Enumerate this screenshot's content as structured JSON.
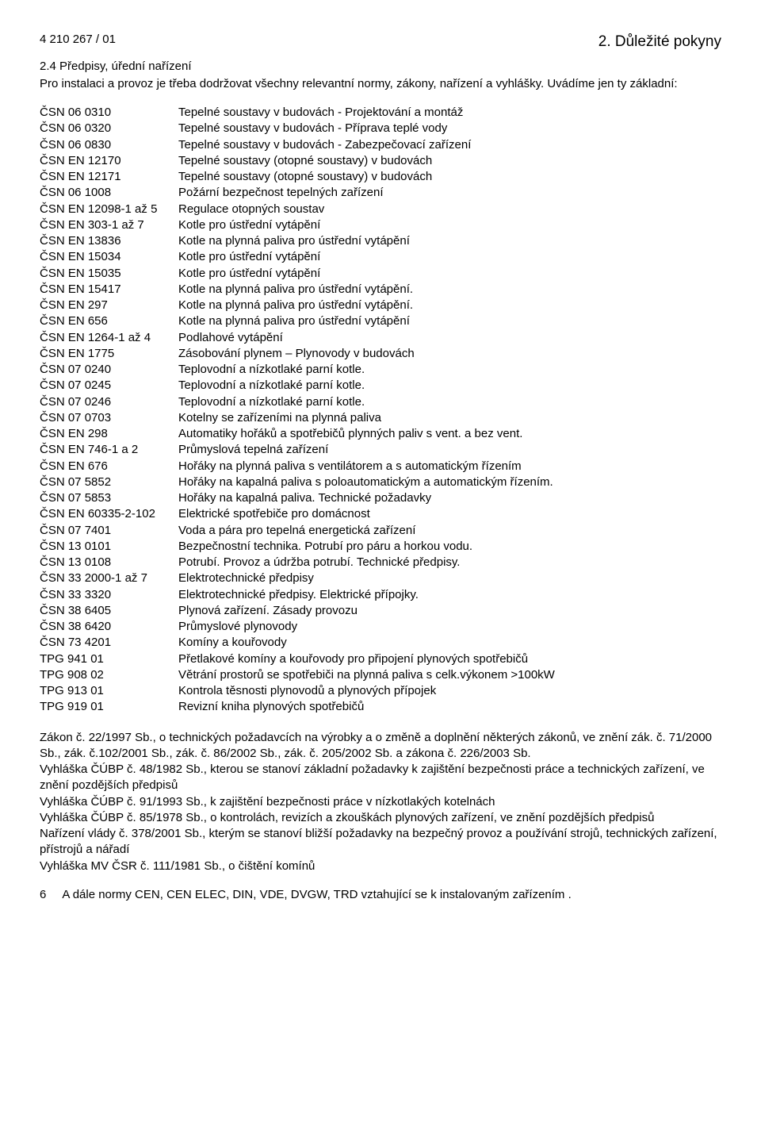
{
  "header": {
    "doc_id": "4 210 267 / 01",
    "section_title": "2. Důležité pokyny"
  },
  "subhead": "2.4  Předpisy, úřední nařízení",
  "intro_line1": "Pro instalaci a provoz je třeba dodržovat všechny relevantní normy, zákony, nařízení a vyhlášky.",
  "intro_line2": "Uvádíme jen ty základní:",
  "regs": [
    {
      "code": "ČSN 06 0310",
      "desc": "Tepelné soustavy v budovách - Projektování a montáž"
    },
    {
      "code": "ČSN 06 0320",
      "desc": "Tepelné soustavy v budovách - Příprava teplé vody"
    },
    {
      "code": "ČSN 06 0830",
      "desc": "Tepelné soustavy v budovách - Zabezpečovací zařízení"
    },
    {
      "code": "ČSN EN 12170",
      "desc": "Tepelné soustavy (otopné soustavy) v budovách"
    },
    {
      "code": "ČSN EN 12171",
      "desc": "Tepelné soustavy (otopné soustavy) v budovách"
    },
    {
      "code": "ČSN 06 1008",
      "desc": "Požární bezpečnost tepelných zařízení"
    },
    {
      "code": "ČSN EN 12098-1 až 5",
      "desc": "Regulace otopných soustav"
    },
    {
      "code": "ČSN EN 303-1 až 7",
      "desc": "Kotle pro ústřední vytápění"
    },
    {
      "code": "ČSN EN 13836",
      "desc": "Kotle na plynná paliva pro ústřední vytápění"
    },
    {
      "code": "ČSN EN 15034",
      "desc": "Kotle pro ústřední vytápění"
    },
    {
      "code": "ČSN EN 15035",
      "desc": "Kotle pro ústřední vytápění"
    },
    {
      "code": "ČSN EN 15417",
      "desc": "Kotle na plynná paliva pro ústřední vytápění."
    },
    {
      "code": "ČSN EN 297",
      "desc": "Kotle na plynná paliva pro ústřední vytápění."
    },
    {
      "code": "ČSN EN 656",
      "desc": "Kotle na plynná paliva pro ústřední vytápění"
    },
    {
      "code": "ČSN EN 1264-1 až 4",
      "desc": "Podlahové vytápění"
    },
    {
      "code": "ČSN EN 1775",
      "desc": "Zásobování plynem – Plynovody v budovách"
    },
    {
      "code": "ČSN 07 0240",
      "desc": "Teplovodní a nízkotlaké parní kotle."
    },
    {
      "code": "ČSN 07 0245",
      "desc": "Teplovodní a nízkotlaké parní kotle."
    },
    {
      "code": "ČSN 07 0246",
      "desc": "Teplovodní a nízkotlaké parní kotle."
    },
    {
      "code": "ČSN 07 0703",
      "desc": "Kotelny se zařízeními na plynná paliva"
    },
    {
      "code": "ČSN EN 298",
      "desc": "Automatiky hořáků a spotřebičů plynných paliv s vent. a bez vent."
    },
    {
      "code": "ČSN EN 746-1 a 2",
      "desc": "Průmyslová tepelná zařízení"
    },
    {
      "code": "ČSN EN 676",
      "desc": "Hořáky na plynná paliva s ventilátorem a s automatickým řízením"
    },
    {
      "code": "ČSN 07 5852",
      "desc": "Hořáky na kapalná paliva s poloautomatickým a automatickým řízením."
    },
    {
      "code": "ČSN 07 5853",
      "desc": "Hořáky na kapalná paliva. Technické požadavky"
    },
    {
      "code": "ČSN EN 60335-2-102",
      "desc": "Elektrické spotřebiče pro domácnost"
    },
    {
      "code": "ČSN 07 7401",
      "desc": "Voda a pára pro tepelná energetická zařízení"
    },
    {
      "code": "ČSN 13 0101",
      "desc": "Bezpečnostní technika. Potrubí pro páru a horkou vodu."
    },
    {
      "code": "ČSN 13 0108",
      "desc": "Potrubí. Provoz a údržba potrubí. Technické předpisy."
    },
    {
      "code": "ČSN 33 2000-1 až 7",
      "desc": "Elektrotechnické předpisy"
    },
    {
      "code": "ČSN 33 3320",
      "desc": "Elektrotechnické předpisy. Elektrické přípojky."
    },
    {
      "code": "ČSN 38 6405",
      "desc": "Plynová zařízení. Zásady provozu"
    },
    {
      "code": "ČSN 38 6420",
      "desc": "Průmyslové plynovody"
    },
    {
      "code": "ČSN 73 4201",
      "desc": "Komíny a kouřovody"
    },
    {
      "code": "TPG 941 01",
      "desc": "Přetlakové komíny a kouřovody pro připojení plynových spotřebičů"
    },
    {
      "code": "TPG 908 02",
      "desc": "Větrání prostorů se spotřebiči na plynná paliva s celk.výkonem >100kW"
    },
    {
      "code": "TPG 913 01",
      "desc": "Kontrola těsnosti plynovodů a plynových přípojek"
    },
    {
      "code": "TPG 919 01",
      "desc": "Revizní kniha plynových spotřebičů"
    }
  ],
  "laws": [
    "Zákon č. 22/1997 Sb.,  o technických požadavcích na výrobky a o změně a doplnění některých zákonů, ve znění zák. č. 71/2000 Sb., zák. č.102/2001 Sb., zák. č. 86/2002 Sb., zák. č. 205/2002 Sb. a zákona č. 226/2003 Sb.",
    "Vyhláška ČÚBP č. 48/1982 Sb., kterou se stanoví základní požadavky k zajištění bezpečnosti práce a technických zařízení, ve znění pozdějších předpisů",
    "Vyhláška ČÚBP č. 91/1993 Sb., k zajištění bezpečnosti práce v nízkotlakých kotelnách",
    "Vyhláška ČÚBP č. 85/1978 Sb., o kontrolách, revizích a zkouškách plynových zařízení, ve znění pozdějších předpisů",
    "Nařízení vlády č. 378/2001 Sb., kterým se stanoví bližší požadavky na bezpečný provoz a používání strojů, technických zařízení, přístrojů a nářadí",
    "Vyhláška MV ČSR č. 111/1981 Sb., o čištění komínů"
  ],
  "footer_note": "A dále normy  CEN, CEN ELEC, DIN, VDE, DVGW, TRD vztahující se k instalovaným zařízením .",
  "page_num": "6"
}
